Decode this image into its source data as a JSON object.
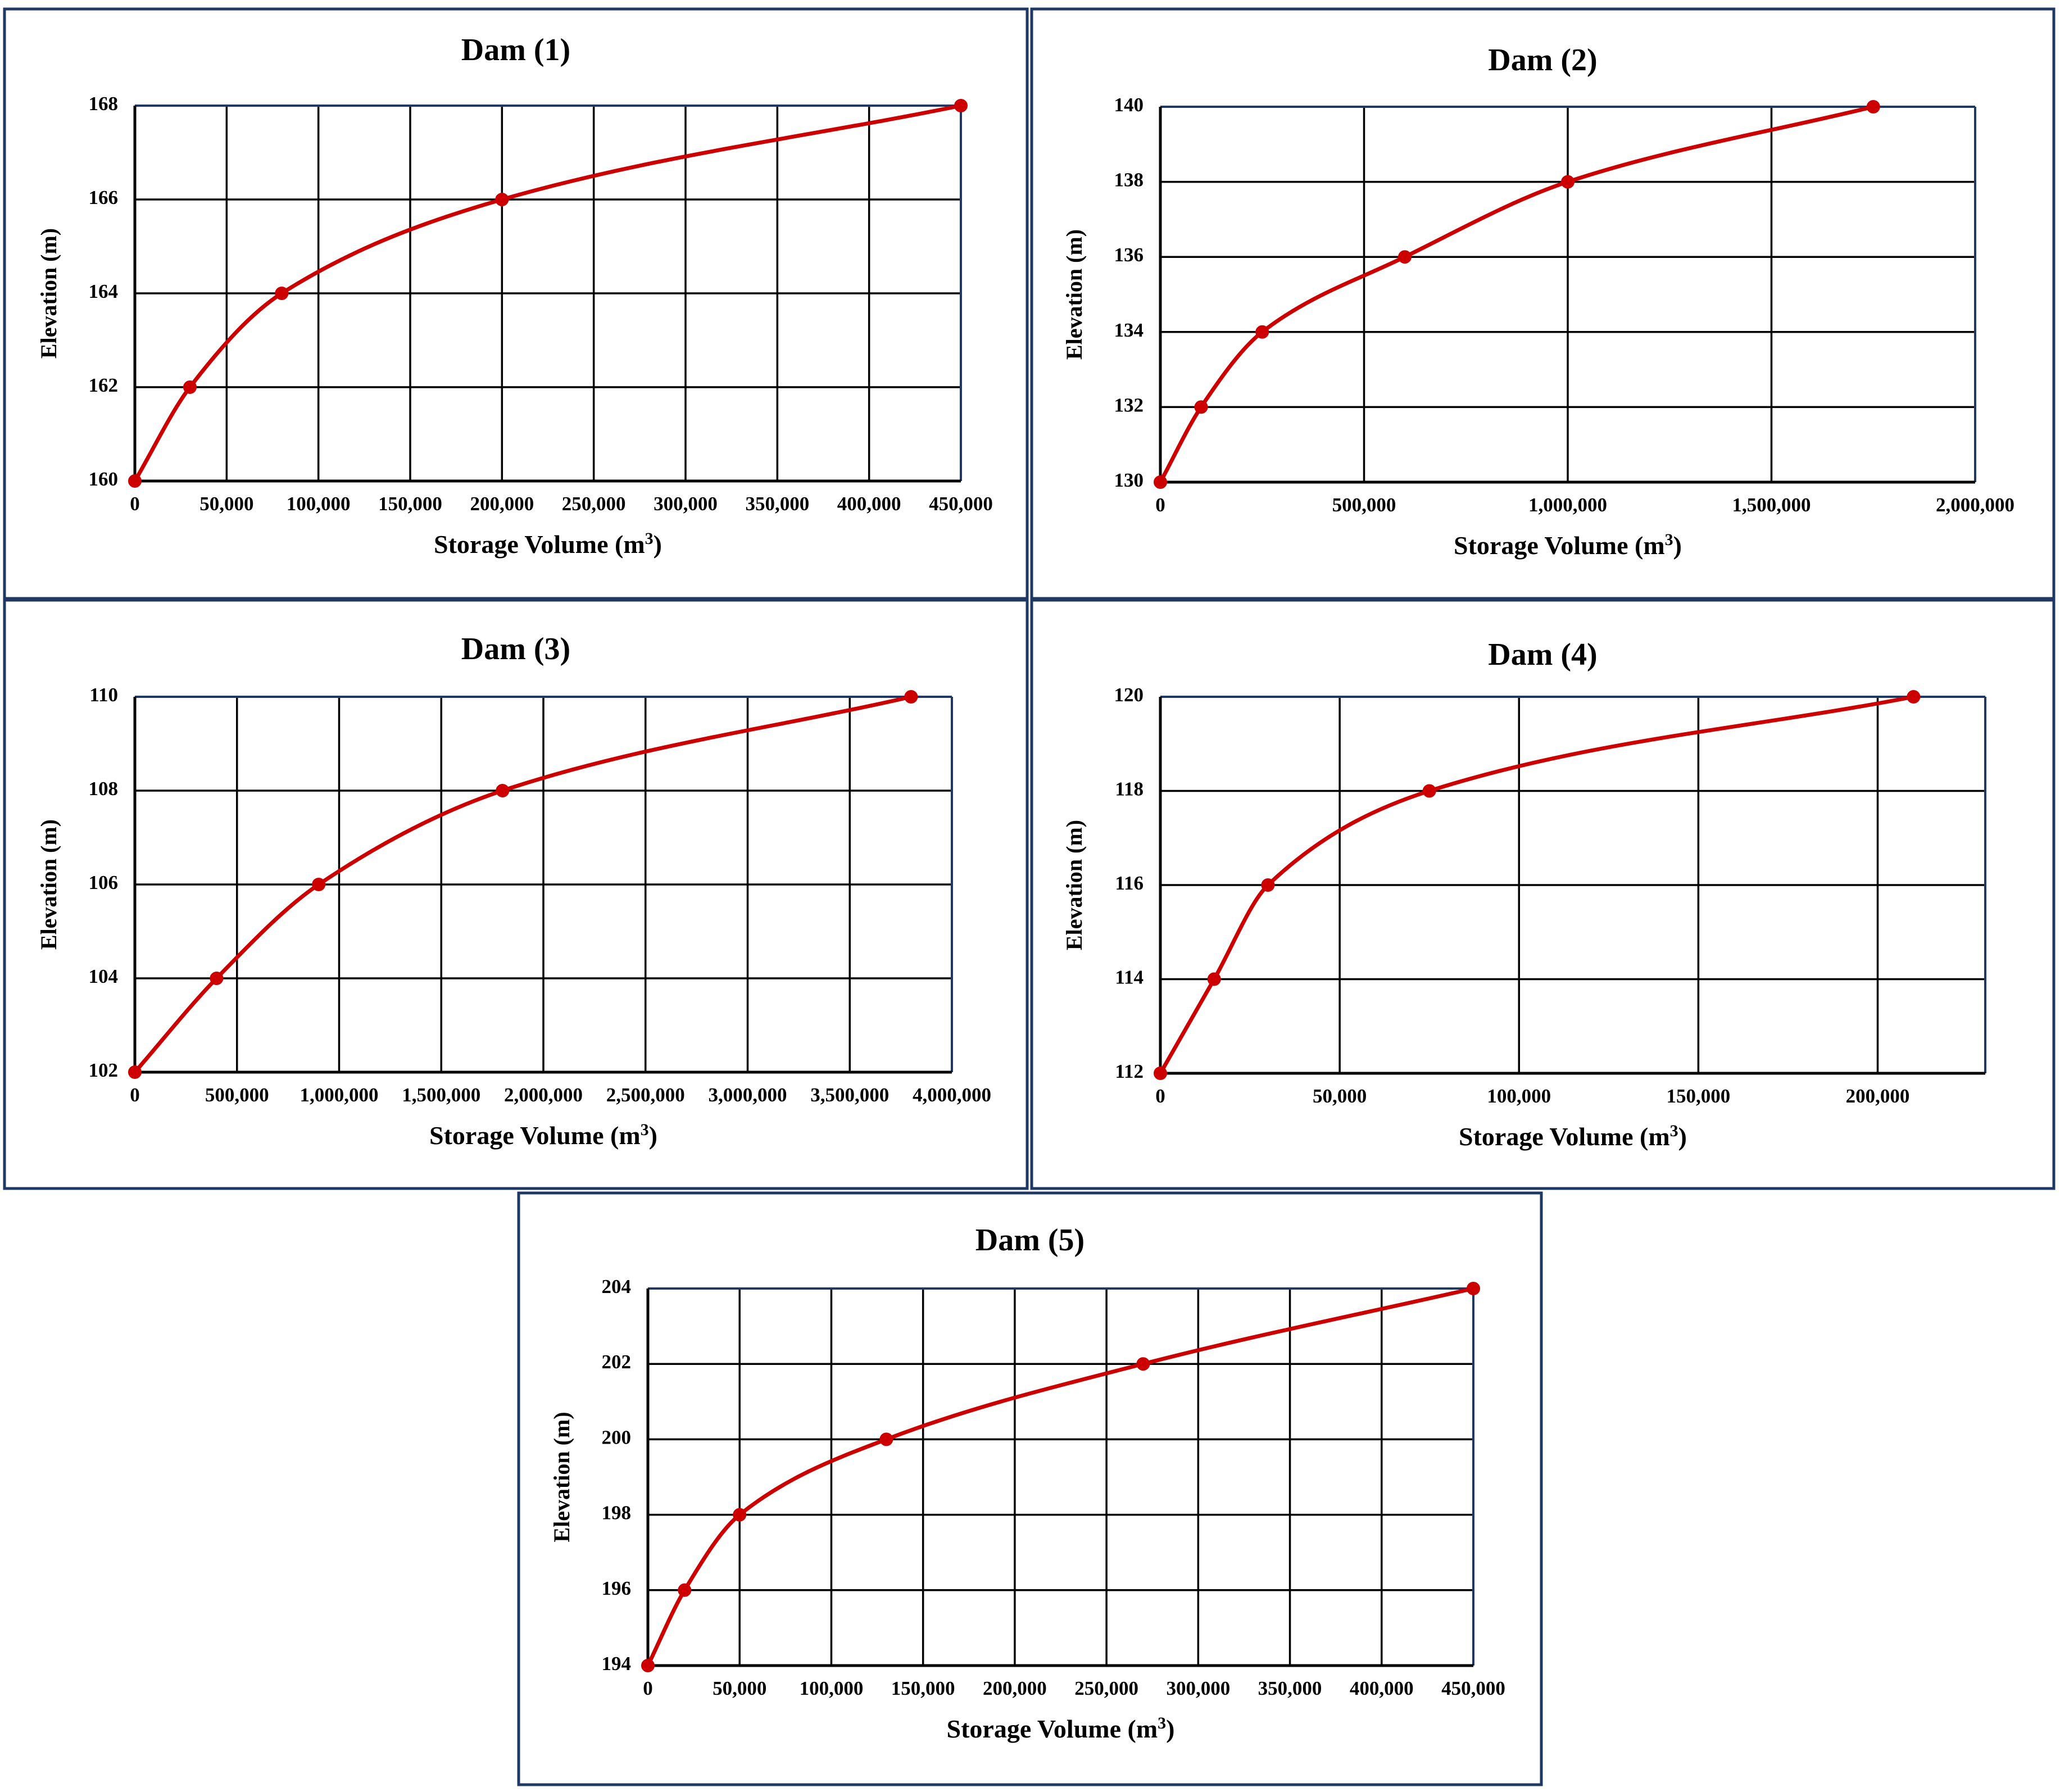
{
  "figure": {
    "colors": {
      "panel_border": "#1f3864",
      "plot_frame": "#1f3864",
      "grid": "#000000",
      "series": "#cc0000",
      "text": "#000000",
      "background": "#ffffff"
    }
  },
  "chart_data": [
    {
      "type": "line",
      "title": "Dam (1)",
      "xlabel": "Storage Volume (m",
      "xlabel_superscript": "3",
      "xlabel_suffix": ")",
      "ylabel": "Elevation (m)",
      "xlim": [
        0,
        450000
      ],
      "ylim": [
        160,
        168
      ],
      "x_ticks": [
        0,
        50000,
        100000,
        150000,
        200000,
        250000,
        300000,
        350000,
        400000,
        450000
      ],
      "x_tick_labels": [
        "0",
        "50,000",
        "100,000",
        "150,000",
        "200,000",
        "250,000",
        "300,000",
        "350,000",
        "400,000",
        "450,000"
      ],
      "y_ticks": [
        160,
        162,
        164,
        166,
        168
      ],
      "y_tick_labels": [
        "160",
        "162",
        "164",
        "166",
        "168"
      ],
      "grid": true,
      "series": [
        {
          "name": "Dam (1)",
          "x": [
            0,
            30000,
            80000,
            200000,
            450000
          ],
          "y": [
            160,
            162,
            164,
            166,
            168
          ]
        }
      ]
    },
    {
      "type": "line",
      "title": "Dam (2)",
      "xlabel": "Storage Volume (m",
      "xlabel_superscript": "3",
      "xlabel_suffix": ")",
      "ylabel": "Elevation (m)",
      "xlim": [
        0,
        2000000
      ],
      "ylim": [
        130,
        140
      ],
      "x_ticks": [
        0,
        500000,
        1000000,
        1500000,
        2000000
      ],
      "x_tick_labels": [
        "0",
        "500,000",
        "1,000,000",
        "1,500,000",
        "2,000,000"
      ],
      "y_ticks": [
        130,
        132,
        134,
        136,
        138,
        140
      ],
      "y_tick_labels": [
        "130",
        "132",
        "134",
        "136",
        "138",
        "140"
      ],
      "grid": true,
      "series": [
        {
          "name": "Dam (2)",
          "x": [
            0,
            100000,
            250000,
            600000,
            1000000,
            1750000
          ],
          "y": [
            130,
            132,
            134,
            136,
            138,
            140
          ]
        }
      ]
    },
    {
      "type": "line",
      "title": "Dam (3)",
      "xlabel": "Storage Volume (m",
      "xlabel_superscript": "3",
      "xlabel_suffix": ")",
      "ylabel": "Elevation (m)",
      "xlim": [
        0,
        4000000
      ],
      "ylim": [
        102,
        110
      ],
      "x_ticks": [
        0,
        500000,
        1000000,
        1500000,
        2000000,
        2500000,
        3000000,
        3500000,
        4000000
      ],
      "x_tick_labels": [
        "0",
        "500,000",
        "1,000,000",
        "1,500,000",
        "2,000,000",
        "2,500,000",
        "3,000,000",
        "3,500,000",
        "4,000,000"
      ],
      "y_ticks": [
        102,
        104,
        106,
        108,
        110
      ],
      "y_tick_labels": [
        "102",
        "104",
        "106",
        "108",
        "110"
      ],
      "grid": true,
      "series": [
        {
          "name": "Dam (3)",
          "x": [
            0,
            400000,
            900000,
            1800000,
            3800000
          ],
          "y": [
            102,
            104,
            106,
            108,
            110
          ]
        }
      ]
    },
    {
      "type": "line",
      "title": "Dam (4)",
      "xlabel": "Storage Volume (m",
      "xlabel_superscript": "3",
      "xlabel_suffix": ")",
      "ylabel": "Elevation (m)",
      "xlim": [
        0,
        230000
      ],
      "ylim": [
        112,
        120
      ],
      "x_ticks": [
        0,
        50000,
        100000,
        150000,
        200000
      ],
      "x_tick_labels": [
        "0",
        "50,000",
        "100,000",
        "150,000",
        "200,000"
      ],
      "y_ticks": [
        112,
        114,
        116,
        118,
        120
      ],
      "y_tick_labels": [
        "112",
        "114",
        "116",
        "118",
        "120"
      ],
      "grid": true,
      "series": [
        {
          "name": "Dam (4)",
          "x": [
            0,
            15000,
            30000,
            75000,
            210000
          ],
          "y": [
            112,
            114,
            116,
            118,
            120
          ]
        }
      ]
    },
    {
      "type": "line",
      "title": "Dam (5)",
      "xlabel": "Storage Volume (m",
      "xlabel_superscript": "3",
      "xlabel_suffix": ")",
      "ylabel": "Elevation (m)",
      "xlim": [
        0,
        450000
      ],
      "ylim": [
        194,
        204
      ],
      "x_ticks": [
        0,
        50000,
        100000,
        150000,
        200000,
        250000,
        300000,
        350000,
        400000,
        450000
      ],
      "x_tick_labels": [
        "0",
        "50,000",
        "100,000",
        "150,000",
        "200,000",
        "250,000",
        "300,000",
        "350,000",
        "400,000",
        "450,000"
      ],
      "y_ticks": [
        194,
        196,
        198,
        200,
        202,
        204
      ],
      "y_tick_labels": [
        "194",
        "196",
        "198",
        "200",
        "202",
        "204"
      ],
      "grid": true,
      "series": [
        {
          "name": "Dam (5)",
          "x": [
            0,
            20000,
            50000,
            130000,
            270000,
            450000
          ],
          "y": [
            194,
            196,
            198,
            200,
            202,
            204
          ]
        }
      ]
    }
  ]
}
